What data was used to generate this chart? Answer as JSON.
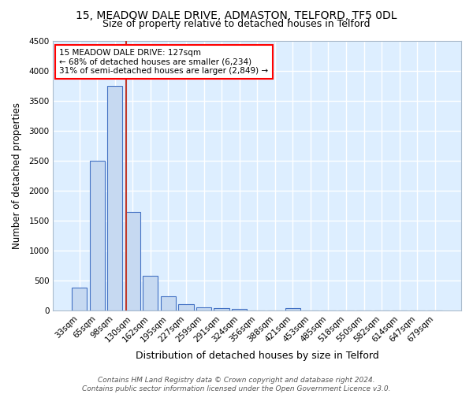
{
  "title1": "15, MEADOW DALE DRIVE, ADMASTON, TELFORD, TF5 0DL",
  "title2": "Size of property relative to detached houses in Telford",
  "xlabel": "Distribution of detached houses by size in Telford",
  "ylabel": "Number of detached properties",
  "annotation_line1": "15 MEADOW DALE DRIVE: 127sqm",
  "annotation_line2": "← 68% of detached houses are smaller (6,234)",
  "annotation_line3": "31% of semi-detached houses are larger (2,849) →",
  "bar_labels": [
    "33sqm",
    "65sqm",
    "98sqm",
    "130sqm",
    "162sqm",
    "195sqm",
    "227sqm",
    "259sqm",
    "291sqm",
    "324sqm",
    "356sqm",
    "388sqm",
    "421sqm",
    "453sqm",
    "485sqm",
    "518sqm",
    "550sqm",
    "582sqm",
    "614sqm",
    "647sqm",
    "679sqm"
  ],
  "bar_values": [
    380,
    2500,
    3750,
    1640,
    580,
    240,
    110,
    60,
    40,
    35,
    0,
    0,
    50,
    0,
    0,
    0,
    0,
    0,
    0,
    0,
    0
  ],
  "bar_color": "#c6d9f1",
  "bar_edge_color": "#4472c4",
  "property_line_color": "#c0392b",
  "ylim": [
    0,
    4500
  ],
  "yticks": [
    0,
    500,
    1000,
    1500,
    2000,
    2500,
    3000,
    3500,
    4000,
    4500
  ],
  "bg_color": "#ddeeff",
  "grid_color": "#ffffff",
  "footnote1": "Contains HM Land Registry data © Crown copyright and database right 2024.",
  "footnote2": "Contains public sector information licensed under the Open Government Licence v3.0.",
  "title1_fontsize": 10,
  "title2_fontsize": 9,
  "annotation_fontsize": 7.5,
  "xlabel_fontsize": 9,
  "ylabel_fontsize": 8.5,
  "tick_fontsize": 7.5,
  "footnote_fontsize": 6.5
}
